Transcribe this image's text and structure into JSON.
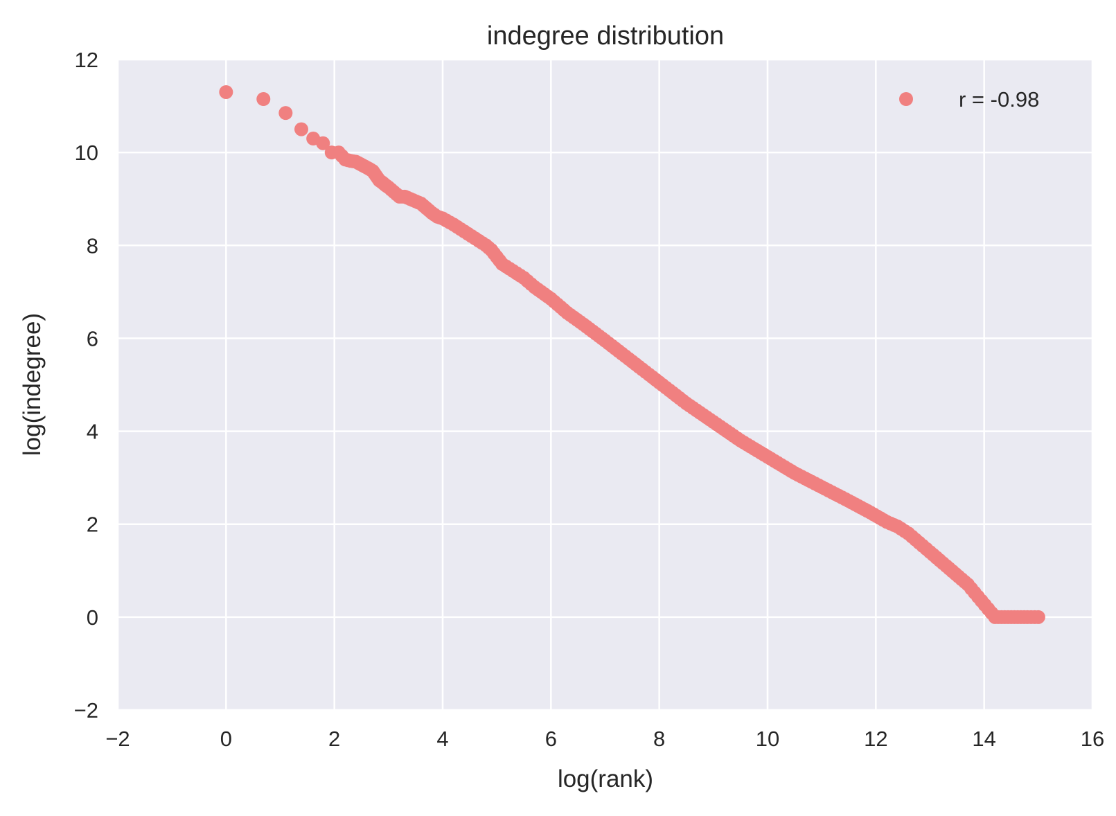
{
  "chart_data": {
    "type": "scatter",
    "title": "indegree distribution",
    "xlabel": "log(rank)",
    "ylabel": "log(indegree)",
    "xlim": [
      -2,
      16
    ],
    "ylim": [
      -2,
      12
    ],
    "xticks": [
      "−2",
      "0",
      "2",
      "4",
      "6",
      "8",
      "10",
      "12",
      "14",
      "16"
    ],
    "yticks": [
      "−2",
      "0",
      "2",
      "4",
      "6",
      "8",
      "10",
      "12"
    ],
    "xtick_values": [
      -2,
      0,
      2,
      4,
      6,
      8,
      10,
      12,
      14,
      16
    ],
    "ytick_values": [
      -2,
      0,
      2,
      4,
      6,
      8,
      10,
      12
    ],
    "grid": true,
    "legend": {
      "position": "top-right",
      "entries": [
        "r = -0.98"
      ]
    },
    "series": [
      {
        "name": "r = -0.98",
        "color": "#f08080",
        "x": [
          0.0,
          0.69,
          1.1,
          1.39,
          1.61,
          1.79,
          1.95,
          2.08,
          2.2,
          2.3,
          2.4,
          2.48,
          2.56,
          2.64,
          2.71,
          2.77,
          2.83,
          2.89,
          2.94,
          3.0,
          3.1,
          3.2,
          3.3,
          3.4,
          3.5,
          3.6,
          3.7,
          3.8,
          3.9,
          4.0,
          4.2,
          4.4,
          4.6,
          4.8,
          4.9,
          5.0,
          5.1,
          5.3,
          5.5,
          5.7,
          6.0,
          6.3,
          6.6,
          7.0,
          7.5,
          8.0,
          8.5,
          9.0,
          9.5,
          10.0,
          10.5,
          11.0,
          11.5,
          11.9,
          12.2,
          12.4,
          12.6,
          12.8,
          13.0,
          13.3,
          13.7,
          14.2,
          14.5,
          14.8,
          15.0
        ],
        "y": [
          11.3,
          11.15,
          10.85,
          10.5,
          10.3,
          10.2,
          10.0,
          10.0,
          9.85,
          9.82,
          9.8,
          9.75,
          9.7,
          9.65,
          9.6,
          9.5,
          9.4,
          9.35,
          9.3,
          9.25,
          9.15,
          9.05,
          9.05,
          9.0,
          8.95,
          8.9,
          8.8,
          8.7,
          8.62,
          8.58,
          8.45,
          8.3,
          8.15,
          8.0,
          7.9,
          7.75,
          7.6,
          7.45,
          7.3,
          7.1,
          6.85,
          6.55,
          6.3,
          5.95,
          5.5,
          5.05,
          4.6,
          4.2,
          3.8,
          3.45,
          3.1,
          2.8,
          2.5,
          2.25,
          2.05,
          1.95,
          1.8,
          1.6,
          1.4,
          1.1,
          0.7,
          0.0,
          0.0,
          0.0,
          0.0
        ]
      }
    ]
  }
}
